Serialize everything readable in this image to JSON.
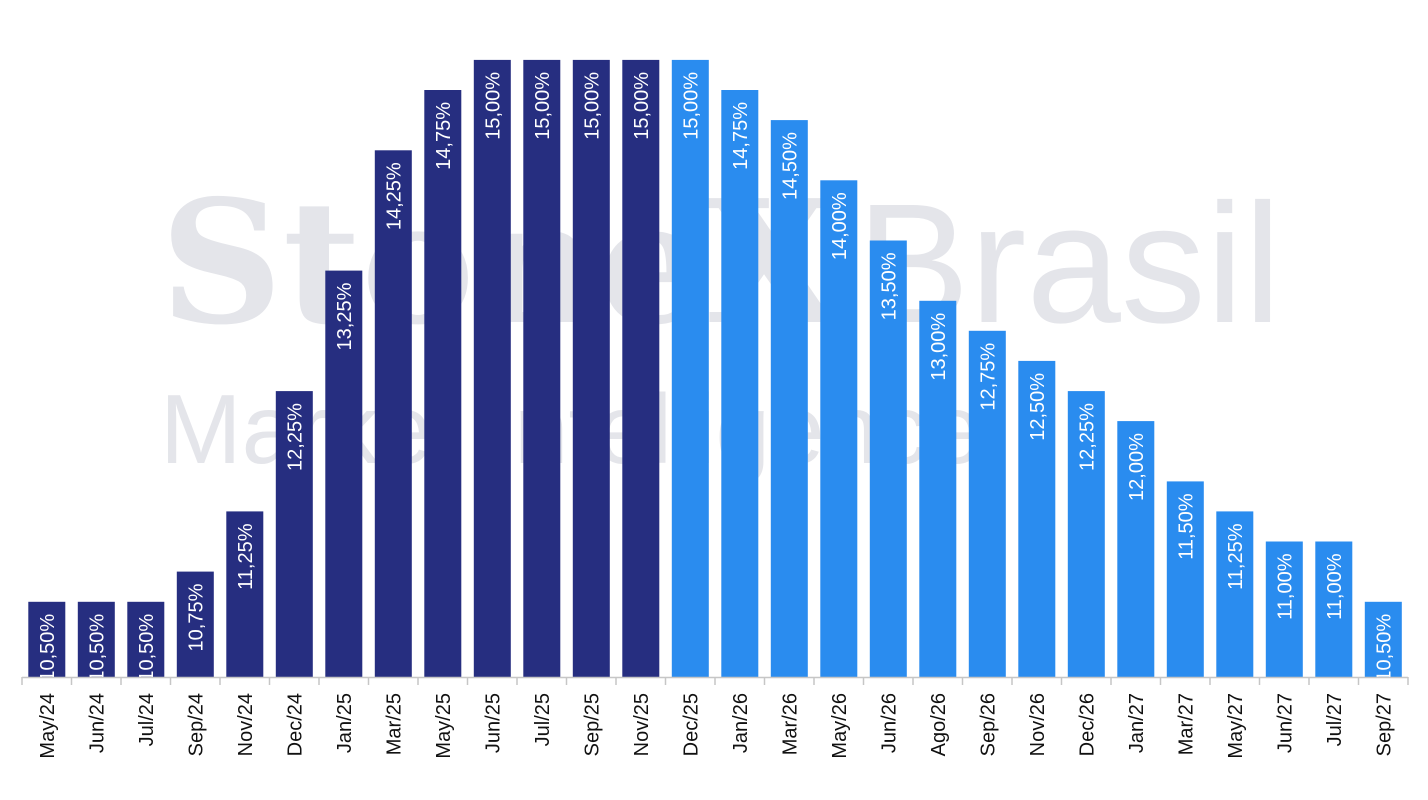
{
  "watermark": {
    "brand_bold": "StoneX",
    "brand_light": "Brasil",
    "subtitle": "Market Intelligence"
  },
  "chart_data": {
    "type": "bar",
    "title": "",
    "xlabel": "",
    "ylabel": "",
    "ylim": [
      0,
      15
    ],
    "grid": false,
    "legend": "none",
    "colors": {
      "realized": "#262e80",
      "projected": "#2a8cef",
      "axis": "#c6c6c6"
    },
    "categories": [
      "May/24",
      "Jun/24",
      "Jul/24",
      "Sep/24",
      "Nov/24",
      "Dec/24",
      "Jan/25",
      "Mar/25",
      "May/25",
      "Jun/25",
      "Jul/25",
      "Sep/25",
      "Nov/25",
      "Dec/25",
      "Jan/26",
      "Mar/26",
      "May/26",
      "Jun/26",
      "Ago/26",
      "Sep/26",
      "Nov/26",
      "Dec/26",
      "Jan/27",
      "Mar/27",
      "May/27",
      "Jun/27",
      "Jul/27",
      "Sep/27"
    ],
    "values": [
      10.5,
      10.5,
      10.5,
      10.75,
      11.25,
      12.25,
      13.25,
      14.25,
      14.75,
      15.0,
      15.0,
      15.0,
      15.0,
      15.0,
      14.75,
      14.5,
      14.0,
      13.5,
      13.0,
      12.75,
      12.5,
      12.25,
      12.0,
      11.5,
      11.25,
      11.0,
      11.0,
      10.5
    ],
    "value_labels": [
      "10,50%",
      "10,50%",
      "10,50%",
      "10,75%",
      "11,25%",
      "12,25%",
      "13,25%",
      "14,25%",
      "14,75%",
      "15,00%",
      "15,00%",
      "15,00%",
      "15,00%",
      "15,00%",
      "14,75%",
      "14,50%",
      "14,00%",
      "13,50%",
      "13,00%",
      "12,75%",
      "12,50%",
      "12,25%",
      "12,00%",
      "11,50%",
      "11,25%",
      "11,00%",
      "11,00%",
      "10,50%"
    ],
    "projected_from_index": 13
  }
}
